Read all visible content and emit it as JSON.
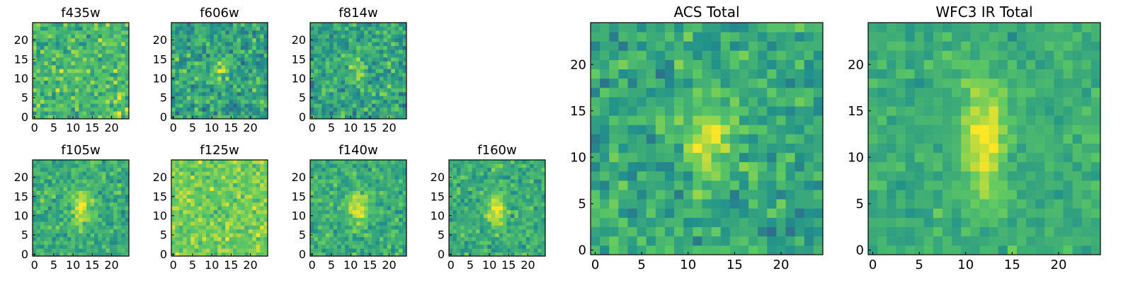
{
  "chart_data": [
    {
      "type": "heatmap",
      "title": "f435w",
      "x_ticks": [
        "0",
        "5",
        "10",
        "15",
        "20"
      ],
      "y_ticks": [
        "0",
        "5",
        "10",
        "15",
        "20"
      ],
      "grid_size": [
        25,
        25
      ],
      "colormap": "viridis",
      "xlim": [
        0,
        24
      ],
      "ylim": [
        0,
        24
      ],
      "pattern": "noise"
    },
    {
      "type": "heatmap",
      "title": "f606w",
      "x_ticks": [
        "0",
        "5",
        "10",
        "15",
        "20"
      ],
      "y_ticks": [
        "0",
        "5",
        "10",
        "15",
        "20"
      ],
      "grid_size": [
        25,
        25
      ],
      "colormap": "viridis",
      "xlim": [
        0,
        24
      ],
      "ylim": [
        0,
        24
      ],
      "pattern": "noise_with_faint_central_source"
    },
    {
      "type": "heatmap",
      "title": "f814w",
      "x_ticks": [
        "0",
        "5",
        "10",
        "15",
        "20"
      ],
      "y_ticks": [
        "0",
        "5",
        "10",
        "15",
        "20"
      ],
      "grid_size": [
        25,
        25
      ],
      "colormap": "viridis",
      "xlim": [
        0,
        24
      ],
      "ylim": [
        0,
        24
      ],
      "pattern": "noise_with_faint_central_source"
    },
    {
      "type": "heatmap",
      "title": "f105w",
      "x_ticks": [
        "0",
        "5",
        "10",
        "15",
        "20"
      ],
      "y_ticks": [
        "0",
        "5",
        "10",
        "15",
        "20"
      ],
      "grid_size": [
        25,
        25
      ],
      "colormap": "viridis",
      "xlim": [
        0,
        24
      ],
      "ylim": [
        0,
        24
      ],
      "pattern": "central_source"
    },
    {
      "type": "heatmap",
      "title": "f125w",
      "x_ticks": [
        "0",
        "5",
        "10",
        "15",
        "20"
      ],
      "y_ticks": [
        "0",
        "5",
        "10",
        "15",
        "20"
      ],
      "grid_size": [
        25,
        25
      ],
      "colormap": "viridis",
      "xlim": [
        0,
        24
      ],
      "ylim": [
        0,
        24
      ],
      "pattern": "noise_bright"
    },
    {
      "type": "heatmap",
      "title": "f140w",
      "x_ticks": [
        "0",
        "5",
        "10",
        "15",
        "20"
      ],
      "y_ticks": [
        "0",
        "5",
        "10",
        "15",
        "20"
      ],
      "grid_size": [
        25,
        25
      ],
      "colormap": "viridis",
      "xlim": [
        0,
        24
      ],
      "ylim": [
        0,
        24
      ],
      "pattern": "central_source"
    },
    {
      "type": "heatmap",
      "title": "f160w",
      "x_ticks": [
        "0",
        "5",
        "10",
        "15",
        "20"
      ],
      "y_ticks": [
        "0",
        "5",
        "10",
        "15",
        "20"
      ],
      "grid_size": [
        25,
        25
      ],
      "colormap": "viridis",
      "xlim": [
        0,
        24
      ],
      "ylim": [
        0,
        24
      ],
      "pattern": "central_source"
    },
    {
      "type": "heatmap",
      "title": "ACS Total",
      "x_ticks": [
        "0",
        "5",
        "10",
        "15",
        "20"
      ],
      "y_ticks": [
        "0",
        "5",
        "10",
        "15",
        "20"
      ],
      "grid_size": [
        25,
        25
      ],
      "colormap": "viridis",
      "xlim": [
        0,
        24
      ],
      "ylim": [
        0,
        24
      ],
      "pattern": "central_source_noisy"
    },
    {
      "type": "heatmap",
      "title": "WFC3 IR Total",
      "x_ticks": [
        "0",
        "5",
        "10",
        "15",
        "20"
      ],
      "y_ticks": [
        "0",
        "5",
        "10",
        "15",
        "20"
      ],
      "grid_size": [
        25,
        25
      ],
      "colormap": "viridis",
      "xlim": [
        0,
        24
      ],
      "ylim": [
        0,
        24
      ],
      "pattern": "elongated_central_source"
    }
  ],
  "colors": {
    "colormap_stops": [
      "#440154",
      "#3b528b",
      "#21918c",
      "#5ec962",
      "#fde725"
    ],
    "axis": "#000000",
    "background": "#ffffff"
  }
}
